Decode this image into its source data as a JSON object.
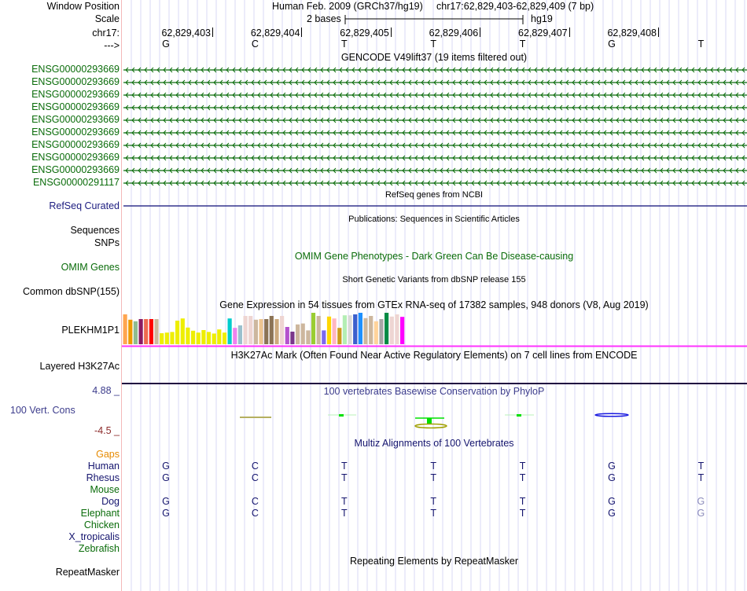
{
  "header": {
    "window_position_label": "Window Position",
    "scale_label": "Scale",
    "chrom_label": "chr17:",
    "strand_label": "--->",
    "assembly": "Human Feb. 2009 (GRCh37/hg19)",
    "position": "chr17:62,829,403-62,829,409 (7 bp)",
    "scale_text": "2 bases",
    "scale_db": "hg19",
    "coords": [
      "62,829,403",
      "62,829,404",
      "62,829,405",
      "62,829,406",
      "62,829,407",
      "62,829,408"
    ],
    "bases": [
      "G",
      "C",
      "T",
      "T",
      "T",
      "G",
      "T"
    ]
  },
  "gencode": {
    "title": "GENCODE V49lift37 (19 items filtered out)",
    "color": "#0a6c0a",
    "items": [
      "ENSG00000293669",
      "ENSG00000293669",
      "ENSG00000293669",
      "ENSG00000293669",
      "ENSG00000293669",
      "ENSG00000293669",
      "ENSG00000293669",
      "ENSG00000293669",
      "ENSG00000293669",
      "ENSG00000291117"
    ]
  },
  "refseq": {
    "title": "RefSeq genes from NCBI",
    "label": "RefSeq Curated",
    "color": "#0c0c78"
  },
  "publications": {
    "title": "Publications: Sequences in Scientific Articles",
    "label1": "Sequences",
    "label2": "SNPs"
  },
  "omim": {
    "title": "OMIM Gene Phenotypes - Dark Green Can Be Disease-causing",
    "label": "OMIM Genes",
    "color": "#0a6c0a"
  },
  "dbsnp": {
    "title": "Short Genetic Variants from dbSNP release 155",
    "label": "Common dbSNP(155)"
  },
  "gtex": {
    "title": "Gene Expression in 54 tissues from GTEx RNA-seq of 17382 samples, 948 donors (V8, Aug 2019)",
    "label": "PLEKHM1P1",
    "line_color": "#ff33ff",
    "bars": [
      {
        "c": "#ffa54f",
        "v": 0.95
      },
      {
        "c": "#ee9a00",
        "v": 0.78
      },
      {
        "c": "#8fbc8f",
        "v": 0.73
      },
      {
        "c": "#8b1c62",
        "v": 0.8
      },
      {
        "c": "#ee6a50",
        "v": 0.8
      },
      {
        "c": "#ff0000",
        "v": 0.8
      },
      {
        "c": "#cdb79e",
        "v": 0.8
      },
      {
        "c": "#eeee00",
        "v": 0.35
      },
      {
        "c": "#eeee00",
        "v": 0.37
      },
      {
        "c": "#eeee00",
        "v": 0.39
      },
      {
        "c": "#eeee00",
        "v": 0.75
      },
      {
        "c": "#eeee00",
        "v": 0.82
      },
      {
        "c": "#eeee00",
        "v": 0.53
      },
      {
        "c": "#eeee00",
        "v": 0.43
      },
      {
        "c": "#eeee00",
        "v": 0.37
      },
      {
        "c": "#eeee00",
        "v": 0.45
      },
      {
        "c": "#eeee00",
        "v": 0.39
      },
      {
        "c": "#eeee00",
        "v": 0.34
      },
      {
        "c": "#eeee00",
        "v": 0.47
      },
      {
        "c": "#eeee00",
        "v": 0.37
      },
      {
        "c": "#00cdcd",
        "v": 0.82
      },
      {
        "c": "#ee82ee",
        "v": 0.52
      },
      {
        "c": "#9ac0cd",
        "v": 0.6
      },
      {
        "c": "#eed5d2",
        "v": 0.9
      },
      {
        "c": "#eed5d2",
        "v": 0.9
      },
      {
        "c": "#cdb79e",
        "v": 0.78
      },
      {
        "c": "#eec591",
        "v": 0.8
      },
      {
        "c": "#8b7355",
        "v": 0.8
      },
      {
        "c": "#8b7355",
        "v": 0.9
      },
      {
        "c": "#cdaa7d",
        "v": 0.8
      },
      {
        "c": "#eed5d2",
        "v": 0.9
      },
      {
        "c": "#b452cd",
        "v": 0.55
      },
      {
        "c": "#7a378b",
        "v": 0.4
      },
      {
        "c": "#cdb79e",
        "v": 0.63
      },
      {
        "c": "#cdb79e",
        "v": 0.66
      },
      {
        "c": "#cdb79e",
        "v": 0.44
      },
      {
        "c": "#9acd32",
        "v": 1.0
      },
      {
        "c": "#cdb79e",
        "v": 0.9
      },
      {
        "c": "#7b68ee",
        "v": 0.44
      },
      {
        "c": "#ffd700",
        "v": 0.88
      },
      {
        "c": "#ffb6c1",
        "v": 0.82
      },
      {
        "c": "#cd9b1d",
        "v": 0.52
      },
      {
        "c": "#b4eeb4",
        "v": 0.92
      },
      {
        "c": "#d9d9d9",
        "v": 0.92
      },
      {
        "c": "#3a5fcd",
        "v": 0.95
      },
      {
        "c": "#1e90ff",
        "v": 1.0
      },
      {
        "c": "#cdb79e",
        "v": 0.83
      },
      {
        "c": "#cdb79e",
        "v": 0.9
      },
      {
        "c": "#ffd39b",
        "v": 0.73
      },
      {
        "c": "#a6a6a6",
        "v": 0.8
      },
      {
        "c": "#008b45",
        "v": 1.0
      },
      {
        "c": "#eed5d2",
        "v": 0.88
      },
      {
        "c": "#eed5d2",
        "v": 0.95
      },
      {
        "c": "#ff00ff",
        "v": 0.87
      }
    ]
  },
  "h3k27ac": {
    "title": "H3K27Ac Mark (Often Found Near Active Regulatory Elements) on 7 cell lines from ENCODE",
    "label": "Layered H3K27Ac",
    "line_color": "#200a40"
  },
  "conservation": {
    "title": "100 vertebrates Basewise Conservation by PhyloP",
    "label": "100 Vert. Cons",
    "max": "4.88 _",
    "min": "-4.5 _",
    "max_color": "#3c3c8c",
    "min_color": "#8c2a2a"
  },
  "multiz": {
    "title": "Multiz Alignments of 100 Vertebrates",
    "gaps_label": "Gaps",
    "gaps_color": "#e68a00",
    "species": [
      {
        "name": "Human",
        "color": "#14146e",
        "seq": [
          "G",
          "C",
          "T",
          "T",
          "T",
          "G",
          "T"
        ],
        "faded": [
          false,
          false,
          false,
          false,
          false,
          false,
          false
        ]
      },
      {
        "name": "Rhesus",
        "color": "#14146e",
        "seq": [
          "G",
          "C",
          "T",
          "T",
          "T",
          "G",
          "T"
        ],
        "faded": [
          false,
          false,
          false,
          false,
          false,
          false,
          false
        ]
      },
      {
        "name": "Mouse",
        "color": "#0a6c0a",
        "seq": [
          "",
          "",
          "",
          "",
          "",
          "",
          ""
        ],
        "faded": [
          false,
          false,
          false,
          false,
          false,
          false,
          false
        ]
      },
      {
        "name": "Dog",
        "color": "#14146e",
        "seq": [
          "G",
          "C",
          "T",
          "T",
          "T",
          "G",
          "G"
        ],
        "faded": [
          false,
          false,
          false,
          false,
          false,
          false,
          true
        ]
      },
      {
        "name": "Elephant",
        "color": "#0a6c0a",
        "seq": [
          "G",
          "C",
          "T",
          "T",
          "T",
          "G",
          "G"
        ],
        "faded": [
          false,
          false,
          false,
          false,
          false,
          false,
          true
        ]
      },
      {
        "name": "Chicken",
        "color": "#0a6c0a",
        "seq": [
          "",
          "",
          "",
          "",
          "",
          "",
          ""
        ],
        "faded": [
          false,
          false,
          false,
          false,
          false,
          false,
          false
        ]
      },
      {
        "name": "X_tropicalis",
        "color": "#14146e",
        "seq": [
          "",
          "",
          "",
          "",
          "",
          "",
          ""
        ],
        "faded": [
          false,
          false,
          false,
          false,
          false,
          false,
          false
        ]
      },
      {
        "name": "Zebrafish",
        "color": "#0a6c0a",
        "seq": [
          "",
          "",
          "",
          "",
          "",
          "",
          ""
        ],
        "faded": [
          false,
          false,
          false,
          false,
          false,
          false,
          false
        ]
      }
    ]
  },
  "repeatmasker": {
    "title": "Repeating Elements by RepeatMasker",
    "label": "RepeatMasker"
  }
}
